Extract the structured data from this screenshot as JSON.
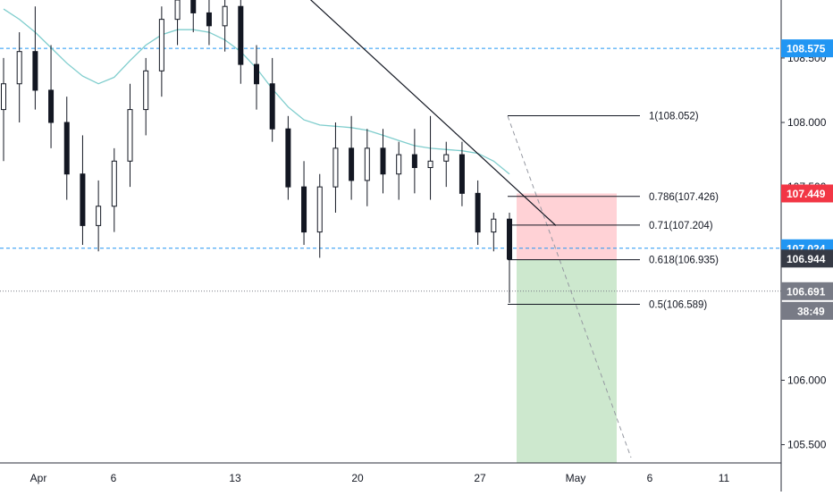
{
  "chart_data": {
    "type": "candlestick",
    "title": "",
    "xlabel": "",
    "ylabel": "",
    "ylim": [
      105.4,
      108.95
    ],
    "x_ticks": [
      "Apr",
      "6",
      "13",
      "20",
      "27",
      "May",
      "6",
      "11"
    ],
    "y_ticks": [
      "105.500",
      "106.000",
      "106.500",
      "107.000",
      "107.500",
      "108.000",
      "108.500"
    ],
    "price_labels": [
      {
        "value": 108.575,
        "text": "108.575",
        "color": "#2196f3"
      },
      {
        "value": 107.449,
        "text": "107.449",
        "color": "#f23645"
      },
      {
        "value": 107.024,
        "text": "107.024",
        "color": "#2196f3"
      },
      {
        "value": 106.944,
        "text": "106.944",
        "color": "#363a45"
      },
      {
        "value": 106.691,
        "text": "106.691",
        "color": "#787b86"
      }
    ],
    "countdown_label": "38:49",
    "horizontal_lines": [
      {
        "value": 108.575,
        "style": "dashed",
        "color": "#2196f3"
      },
      {
        "value": 107.024,
        "style": "dashed",
        "color": "#2196f3"
      },
      {
        "value": 106.691,
        "style": "dotted",
        "color": "#787b86"
      }
    ],
    "fibonacci_levels": [
      {
        "ratio": "1",
        "value": 108.052,
        "label": "1(108.052)"
      },
      {
        "ratio": "0.786",
        "value": 107.426,
        "label": "0.786(107.426)"
      },
      {
        "ratio": "0.71",
        "value": 107.204,
        "label": "0.71(107.204)"
      },
      {
        "ratio": "0.618",
        "value": 106.935,
        "label": "0.618(106.935)"
      },
      {
        "ratio": "0.5",
        "value": 106.589,
        "label": "0.5(106.589)"
      }
    ],
    "position_tool": {
      "entry": 106.935,
      "stop": 107.449,
      "target": 105.4,
      "stop_color": "#ffcdd2",
      "target_color": "#c8e6c9"
    },
    "trendline_values": [
      109.0,
      107.2
    ],
    "projection_values": [
      108.05,
      105.4
    ],
    "ma_color": "#7fcdcd",
    "candle_color": "#131722",
    "moving_average": [
      108.88,
      108.8,
      108.7,
      108.58,
      108.46,
      108.36,
      108.3,
      108.35,
      108.48,
      108.6,
      108.68,
      108.72,
      108.72,
      108.7,
      108.64,
      108.55,
      108.42,
      108.26,
      108.12,
      108.02,
      107.98,
      107.97,
      107.96,
      107.94,
      107.9,
      107.86,
      107.82,
      107.8,
      107.79,
      107.78,
      107.76,
      107.7,
      107.6
    ],
    "candles": [
      {
        "o": 108.1,
        "h": 108.5,
        "l": 107.7,
        "c": 108.3
      },
      {
        "o": 108.3,
        "h": 108.7,
        "l": 108.0,
        "c": 108.55
      },
      {
        "o": 108.55,
        "h": 108.9,
        "l": 108.1,
        "c": 108.25
      },
      {
        "o": 108.25,
        "h": 108.6,
        "l": 107.8,
        "c": 108.0
      },
      {
        "o": 108.0,
        "h": 108.2,
        "l": 107.4,
        "c": 107.6
      },
      {
        "o": 107.6,
        "h": 107.9,
        "l": 107.05,
        "c": 107.2
      },
      {
        "o": 107.2,
        "h": 107.55,
        "l": 107.0,
        "c": 107.35
      },
      {
        "o": 107.35,
        "h": 107.8,
        "l": 107.15,
        "c": 107.7
      },
      {
        "o": 107.7,
        "h": 108.3,
        "l": 107.5,
        "c": 108.1
      },
      {
        "o": 108.1,
        "h": 108.5,
        "l": 107.9,
        "c": 108.4
      },
      {
        "o": 108.4,
        "h": 108.9,
        "l": 108.2,
        "c": 108.8
      },
      {
        "o": 108.8,
        "h": 109.1,
        "l": 108.6,
        "c": 108.95
      },
      {
        "o": 108.95,
        "h": 109.1,
        "l": 108.7,
        "c": 108.85
      },
      {
        "o": 108.85,
        "h": 109.05,
        "l": 108.6,
        "c": 108.75
      },
      {
        "o": 108.75,
        "h": 109.0,
        "l": 108.55,
        "c": 108.9
      },
      {
        "o": 108.9,
        "h": 109.05,
        "l": 108.3,
        "c": 108.45
      },
      {
        "o": 108.45,
        "h": 108.6,
        "l": 108.1,
        "c": 108.3
      },
      {
        "o": 108.3,
        "h": 108.5,
        "l": 107.85,
        "c": 107.95
      },
      {
        "o": 107.95,
        "h": 108.05,
        "l": 107.4,
        "c": 107.5
      },
      {
        "o": 107.5,
        "h": 107.7,
        "l": 107.05,
        "c": 107.15
      },
      {
        "o": 107.15,
        "h": 107.6,
        "l": 106.95,
        "c": 107.5
      },
      {
        "o": 107.5,
        "h": 108.0,
        "l": 107.3,
        "c": 107.8
      },
      {
        "o": 107.8,
        "h": 108.05,
        "l": 107.4,
        "c": 107.55
      },
      {
        "o": 107.55,
        "h": 107.95,
        "l": 107.35,
        "c": 107.8
      },
      {
        "o": 107.8,
        "h": 107.95,
        "l": 107.45,
        "c": 107.6
      },
      {
        "o": 107.6,
        "h": 107.85,
        "l": 107.4,
        "c": 107.75
      },
      {
        "o": 107.75,
        "h": 107.95,
        "l": 107.45,
        "c": 107.65
      },
      {
        "o": 107.65,
        "h": 108.05,
        "l": 107.4,
        "c": 107.7
      },
      {
        "o": 107.7,
        "h": 107.85,
        "l": 107.5,
        "c": 107.75
      },
      {
        "o": 107.75,
        "h": 107.85,
        "l": 107.35,
        "c": 107.45
      },
      {
        "o": 107.45,
        "h": 107.55,
        "l": 107.05,
        "c": 107.15
      },
      {
        "o": 107.15,
        "h": 107.3,
        "l": 107.0,
        "c": 107.25
      },
      {
        "o": 107.25,
        "h": 107.3,
        "l": 106.6,
        "c": 106.94
      }
    ]
  }
}
